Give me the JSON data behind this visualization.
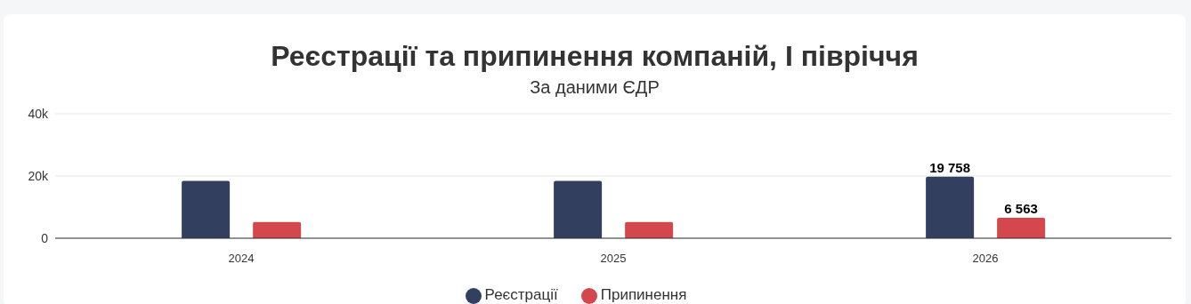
{
  "chart_data": {
    "type": "bar",
    "title": "Реєстрації та припинення компаній, І півріччя",
    "subtitle": "За даними ЄДР",
    "categories": [
      "2024",
      "2025",
      "2026"
    ],
    "series": [
      {
        "name": "Реєстрації",
        "color": "#323f5e",
        "values": [
          18400,
          18400,
          19758
        ],
        "value_labels": [
          null,
          null,
          "19 758"
        ]
      },
      {
        "name": "Припинення",
        "color": "#d4474c",
        "values": [
          5200,
          5200,
          6563
        ],
        "value_labels": [
          null,
          null,
          "6 563"
        ]
      }
    ],
    "ylim": [
      0,
      40000
    ],
    "yticks": [
      {
        "value": 0,
        "label": "0"
      },
      {
        "value": 20000,
        "label": "20k"
      },
      {
        "value": 40000,
        "label": "40k"
      }
    ],
    "grid": "y",
    "legend": "bottom"
  }
}
